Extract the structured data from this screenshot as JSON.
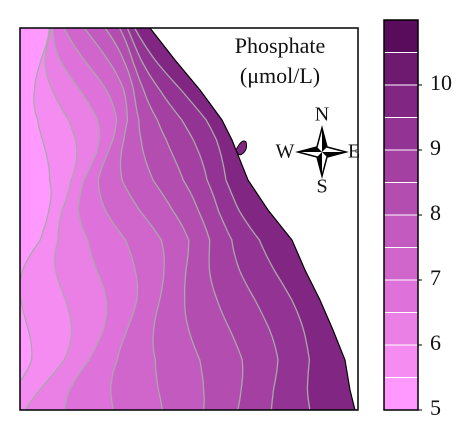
{
  "title": "Phosphate",
  "unit": "(μmol/L)",
  "compass": {
    "north": "N",
    "east": "E",
    "south": "S",
    "west": "W"
  },
  "colorbar": {
    "levels": [
      5,
      5.5,
      6,
      6.5,
      7,
      7.5,
      8,
      8.5,
      9,
      9.5,
      10,
      10.5,
      11
    ],
    "colors": [
      "#ff99ff",
      "#f58cf2",
      "#ea80e6",
      "#de72da",
      "#d066cc",
      "#c25abf",
      "#b34db0",
      "#a340a1",
      "#933393",
      "#822684",
      "#6e1a70",
      "#5a0c5c"
    ],
    "ticks": [
      5,
      6,
      7,
      8,
      9,
      10
    ]
  }
}
